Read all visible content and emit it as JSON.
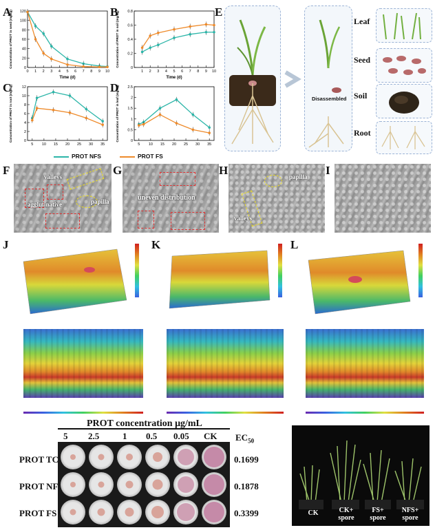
{
  "panels": {
    "a": "A",
    "b": "B",
    "c": "C",
    "d": "D",
    "e": "E",
    "f": "F",
    "g": "G",
    "h": "H",
    "i": "I",
    "j": "J",
    "k": "K",
    "l": "L"
  },
  "legend": {
    "nfs": "PROT NFS",
    "fs": "PROT FS",
    "nfs_color": "#2bb5a8",
    "fs_color": "#ee8a2a"
  },
  "chart_data": [
    {
      "id": "A",
      "type": "line",
      "xlabel": "Time (d)",
      "ylabel": "Concentration of PROT in seed (mg/kg)",
      "x": [
        0,
        1,
        2,
        3,
        5,
        7,
        9,
        10
      ],
      "xlim": [
        0,
        10
      ],
      "ylim": [
        0,
        120
      ],
      "yticks": [
        0,
        20,
        40,
        60,
        80,
        100,
        120
      ],
      "xticks": [
        0,
        1,
        2,
        3,
        4,
        5,
        6,
        7,
        8,
        9,
        10
      ],
      "series": [
        {
          "name": "PROT NFS",
          "values": [
            118,
            88,
            72,
            45,
            18,
            8,
            3,
            2
          ]
        },
        {
          "name": "PROT FS",
          "values": [
            118,
            60,
            30,
            18,
            6,
            2,
            1,
            1
          ]
        }
      ]
    },
    {
      "id": "B",
      "type": "line",
      "xlabel": "Time (d)",
      "ylabel": "Concentration of PROT in soil (mg/kg)",
      "x": [
        1,
        2,
        3,
        5,
        7,
        9,
        10
      ],
      "xlim": [
        0,
        10
      ],
      "ylim": [
        0.0,
        0.8
      ],
      "yticks": [
        0.0,
        0.2,
        0.4,
        0.6,
        0.8
      ],
      "xticks": [
        1,
        2,
        3,
        4,
        5,
        6,
        7,
        8,
        9,
        10
      ],
      "series": [
        {
          "name": "PROT NFS",
          "values": [
            0.22,
            0.28,
            0.32,
            0.42,
            0.47,
            0.5,
            0.5
          ]
        },
        {
          "name": "PROT FS",
          "values": [
            0.28,
            0.45,
            0.49,
            0.54,
            0.58,
            0.61,
            0.6
          ]
        }
      ]
    },
    {
      "id": "C",
      "type": "line",
      "xlabel": "",
      "ylabel": "Concentration of PROT in root (mg/kg)",
      "x": [
        5,
        7,
        14,
        21,
        28,
        35
      ],
      "xlim": [
        3,
        37
      ],
      "ylim": [
        0,
        12
      ],
      "yticks": [
        0,
        2,
        4,
        6,
        8,
        10,
        12
      ],
      "xticks": [
        5,
        10,
        15,
        20,
        25,
        30,
        35
      ],
      "series": [
        {
          "name": "PROT NFS",
          "values": [
            5,
            9.5,
            10.8,
            10.0,
            7.0,
            4.3
          ]
        },
        {
          "name": "PROT FS",
          "values": [
            4.5,
            7.2,
            6.8,
            6.2,
            5.0,
            3.5
          ]
        }
      ]
    },
    {
      "id": "D",
      "type": "line",
      "xlabel": "",
      "ylabel": "Concentration of PROT in leaf (mg/kg)",
      "x": [
        5,
        7,
        14,
        21,
        28,
        35
      ],
      "xlim": [
        3,
        37
      ],
      "ylim": [
        0.0,
        2.5
      ],
      "yticks": [
        0.0,
        0.5,
        1.0,
        1.5,
        2.0,
        2.5
      ],
      "xticks": [
        5,
        10,
        15,
        20,
        25,
        30,
        35
      ],
      "series": [
        {
          "name": "PROT NFS",
          "values": [
            0.75,
            0.85,
            1.5,
            1.9,
            1.2,
            0.6
          ]
        },
        {
          "name": "PROT FS",
          "values": [
            0.7,
            0.75,
            1.2,
            0.8,
            0.5,
            0.35
          ]
        }
      ]
    }
  ],
  "diagram": {
    "disassembled": "Disassembled",
    "leaf": "Leaf",
    "seed": "Seed",
    "soil": "Soil",
    "root": "Root"
  },
  "sem": {
    "f_valleys": "valleys",
    "f_agglutinative": "agglutinative",
    "f_papilla": "papilla",
    "g_uneven": "uneven distribution",
    "h_papilla": "papilla",
    "h_valleys": "valleys"
  },
  "plate": {
    "title": "PROT concentration μg/mL",
    "concentrations": [
      "5",
      "2.5",
      "1",
      "0.5",
      "0.05",
      "CK"
    ],
    "ec50_label": "EC",
    "ec50_sub": "50",
    "rows": [
      {
        "name": "PROT TC",
        "ec50": "0.1699"
      },
      {
        "name": "PROT NFS",
        "ec50": "0.1878"
      },
      {
        "name": "PROT FS",
        "ec50": "0.3399"
      }
    ]
  },
  "pots": [
    {
      "line1": "CK",
      "line2": ""
    },
    {
      "line1": "CK+",
      "line2": "spore"
    },
    {
      "line1": "FS+",
      "line2": "spore"
    },
    {
      "line1": "NFS+",
      "line2": "spore"
    }
  ]
}
